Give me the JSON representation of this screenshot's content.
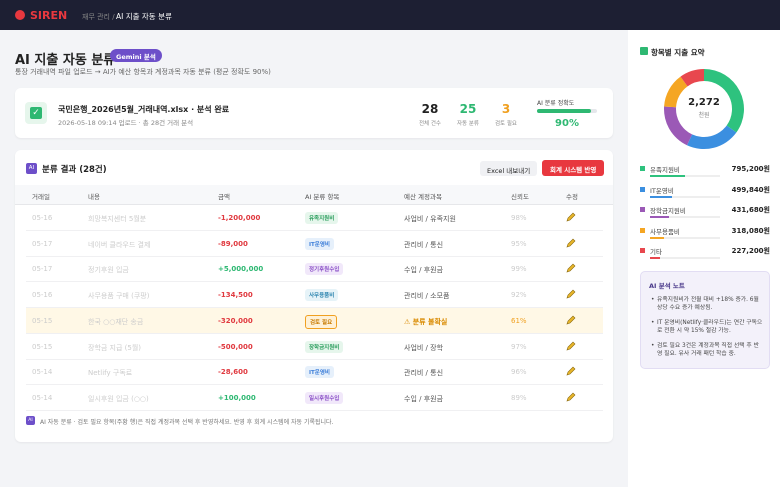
{
  "topbar": {
    "logo": "SIREN",
    "breadcrumb_parent": "재무 관리 /",
    "breadcrumb_current": "AI 지출 자동 분류"
  },
  "header": {
    "title": "AI 지출 자동 분류",
    "badge": "Gemini 분석",
    "subtitle": "통장 거래내역 파일 업로드 → AI가 예산 항목과 계정과목 자동 분류 (평균 정확도 90%)"
  },
  "file": {
    "name": "국민은행_2026년5월_거래내역.xlsx · 분석 완료",
    "meta": "2026-05-18 09:14 업로드 · 총 28건 거래 분석",
    "stats": [
      {
        "value": "28",
        "label": "전체 건수",
        "color": "#222222"
      },
      {
        "value": "25",
        "label": "자동 분류",
        "color": "#2eb872"
      },
      {
        "value": "3",
        "label": "검토 필요",
        "color": "#f0a020"
      }
    ],
    "accuracy_label": "AI 분류 정확도",
    "accuracy": 90,
    "accuracy_text": "90%"
  },
  "results": {
    "icon": "AI",
    "title": "분류 결과 (28건)",
    "export": "Excel 내보내기",
    "apply": "회계 시스템 반영",
    "columns": [
      "거래일",
      "내용",
      "금액",
      "AI 분류 항목",
      "예산 계정과목",
      "신뢰도",
      "수정"
    ],
    "rows": [
      [
        "05-16",
        "희망복지센터 5월분",
        "-1,200,000",
        "유족지원비",
        "사업비 / 유족지원",
        "98%",
        "#e6f6ec",
        "#2a9d5c"
      ],
      [
        "05-17",
        "네이버 클라우드 결제",
        "-89,000",
        "IT운영비",
        "관리비 / 통신",
        "95%",
        "#e6f0fb",
        "#3b7dd8"
      ],
      [
        "05-17",
        "정기후원 입금",
        "+5,000,000",
        "정기후원수입",
        "수입 / 후원금",
        "99%",
        "#f1e8fa",
        "#8a4fc7"
      ],
      [
        "05-16",
        "사무용품 구매 (쿠팡)",
        "-134,500",
        "사무용품비",
        "관리비 / 소모품",
        "92%",
        "#e6f3f8",
        "#2f86b0"
      ],
      [
        "05-15",
        "한국 ○○재단 송금",
        "-320,000",
        "검토 필요",
        "⚠ 분류 불확실",
        "61%",
        "#fff1d6",
        "#c77a00"
      ],
      [
        "05-15",
        "장학금 지급 (5월)",
        "-500,000",
        "장학금지원비",
        "사업비 / 장학",
        "97%",
        "#e6f6ec",
        "#2a9d5c"
      ],
      [
        "05-14",
        "Netlify 구독료",
        "-28,600",
        "IT운영비",
        "관리비 / 통신",
        "96%",
        "#e6f0fb",
        "#3b7dd8"
      ],
      [
        "05-14",
        "일시후원 입금 (○○)",
        "+100,000",
        "일시후원수입",
        "수입 / 후원금",
        "89%",
        "#f1e8fa",
        "#8a4fc7"
      ]
    ],
    "note_icon": "AI",
    "note": "AI 자동 분류 · 검토 필요 항목(주황 행)은 직접 계정과목 선택 후 반영하세요. 반영 후 회계 시스템에 자동 기록됩니다."
  },
  "summary": {
    "title": "항목별 지출 요약",
    "total": "2,272",
    "unit": "천원",
    "items": [
      {
        "name": "유족지원비",
        "amount": 795200,
        "amount_label": "795,200원",
        "color": "#2ec27e"
      },
      {
        "name": "IT운영비",
        "amount": 499840,
        "amount_label": "499,840원",
        "color": "#3b8fe0"
      },
      {
        "name": "장학금지원비",
        "amount": 431680,
        "amount_label": "431,680원",
        "color": "#9b59b6"
      },
      {
        "name": "사무용품비",
        "amount": 318080,
        "amount_label": "318,080원",
        "color": "#f5a623"
      },
      {
        "name": "기타",
        "amount": 227200,
        "amount_label": "227,200원",
        "color": "#e8474e"
      }
    ],
    "note_title": "AI 분석 노트",
    "notes": [
      "유족지원비가 전월 대비 +18% 증가. 6월 상당 수요 증가 예상됨.",
      "IT 운영비(Netlify·클라우드)는 연간 구독으로 전환 시 약 15% 절감 가능.",
      "검토 필요 3건은 계정과목 직접 선택 후 반영 필요. 유사 거래 패턴 학습 중."
    ]
  }
}
